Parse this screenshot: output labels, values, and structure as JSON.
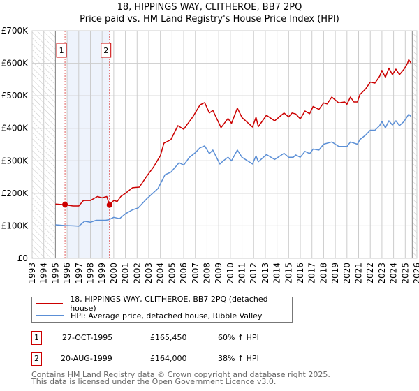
{
  "title": "18, HIPPINGS WAY, CLITHEROE, BB7 2PQ",
  "subtitle": "Price paid vs. HM Land Registry's House Price Index (HPI)",
  "colors": {
    "property": "#cc0000",
    "hpi": "#5b8fd6",
    "shade": "#eef3fc",
    "grid": "#cccccc"
  },
  "chart_data": {
    "type": "line",
    "title": "18, HIPPINGS WAY, CLITHEROE, BB7 2PQ",
    "subtitle": "Price paid vs. HM Land Registry's House Price Index (HPI)",
    "xlim": [
      1993,
      2026
    ],
    "ylim": [
      0,
      700000
    ],
    "x_ticks": [
      "1993",
      "1994",
      "1995",
      "1996",
      "1997",
      "1998",
      "1999",
      "2000",
      "2001",
      "2002",
      "2003",
      "2004",
      "2005",
      "2006",
      "2007",
      "2008",
      "2009",
      "2010",
      "2011",
      "2012",
      "2013",
      "2014",
      "2015",
      "2016",
      "2017",
      "2018",
      "2019",
      "2020",
      "2021",
      "2022",
      "2023",
      "2024",
      "2025",
      "2026"
    ],
    "y_ticks": [
      {
        "v": 0,
        "label": "£0"
      },
      {
        "v": 100000,
        "label": "£100K"
      },
      {
        "v": 200000,
        "label": "£200K"
      },
      {
        "v": 300000,
        "label": "£300K"
      },
      {
        "v": 400000,
        "label": "£400K"
      },
      {
        "v": 500000,
        "label": "£500K"
      },
      {
        "v": 600000,
        "label": "£600K"
      },
      {
        "v": 700000,
        "label": "£700K"
      }
    ],
    "grid": true,
    "hatched_ranges": [
      [
        1993,
        1995
      ],
      [
        2025.6,
        2026
      ]
    ],
    "shaded_range": [
      1996,
      1999.63
    ],
    "series": [
      {
        "name": "18, HIPPINGS WAY, CLITHEROE, BB7 2PQ (detached house)",
        "color": "#cc0000",
        "points": [
          [
            1995,
            167
          ],
          [
            1995.82,
            165
          ],
          [
            1996.5,
            161
          ],
          [
            1997,
            161
          ],
          [
            1997.4,
            178
          ],
          [
            1998,
            178
          ],
          [
            1998.6,
            190
          ],
          [
            1999,
            186
          ],
          [
            1999.4,
            190
          ],
          [
            1999.63,
            164
          ],
          [
            2000,
            178
          ],
          [
            2000.3,
            175
          ],
          [
            2000.6,
            190
          ],
          [
            2001,
            200
          ],
          [
            2001.6,
            217
          ],
          [
            2002.2,
            219
          ],
          [
            2002.8,
            251
          ],
          [
            2003.4,
            280
          ],
          [
            2004,
            316
          ],
          [
            2004.3,
            354
          ],
          [
            2004.9,
            365
          ],
          [
            2005.5,
            408
          ],
          [
            2006,
            397
          ],
          [
            2006.8,
            436
          ],
          [
            2007.4,
            472
          ],
          [
            2007.8,
            479
          ],
          [
            2008.2,
            447
          ],
          [
            2008.5,
            455
          ],
          [
            2009.2,
            402
          ],
          [
            2009.8,
            430
          ],
          [
            2010.1,
            415
          ],
          [
            2010.6,
            462
          ],
          [
            2011,
            433
          ],
          [
            2011.9,
            404
          ],
          [
            2012.2,
            434
          ],
          [
            2012.4,
            405
          ],
          [
            2013.1,
            440
          ],
          [
            2013.8,
            423
          ],
          [
            2014.6,
            447
          ],
          [
            2015,
            435
          ],
          [
            2015.3,
            447
          ],
          [
            2015.6,
            444
          ],
          [
            2016,
            429
          ],
          [
            2016.4,
            453
          ],
          [
            2016.8,
            445
          ],
          [
            2017.1,
            467
          ],
          [
            2017.6,
            458
          ],
          [
            2018,
            478
          ],
          [
            2018.3,
            475
          ],
          [
            2018.7,
            496
          ],
          [
            2019.3,
            478
          ],
          [
            2019.8,
            481
          ],
          [
            2020,
            474
          ],
          [
            2020.3,
            496
          ],
          [
            2020.6,
            481
          ],
          [
            2020.9,
            481
          ],
          [
            2021.1,
            503
          ],
          [
            2021.6,
            521
          ],
          [
            2022,
            542
          ],
          [
            2022.4,
            539
          ],
          [
            2022.8,
            560
          ],
          [
            2023,
            578
          ],
          [
            2023.3,
            557
          ],
          [
            2023.6,
            585
          ],
          [
            2023.9,
            565
          ],
          [
            2024.2,
            582
          ],
          [
            2024.5,
            565
          ],
          [
            2024.9,
            582
          ],
          [
            2025.2,
            600
          ],
          [
            2025.3,
            611
          ],
          [
            2025.5,
            600
          ]
        ]
      },
      {
        "name": "HPI: Average price, detached house, Ribble Valley",
        "color": "#5b8fd6",
        "points": [
          [
            1995,
            103
          ],
          [
            1995.8,
            101
          ],
          [
            1996.5,
            100
          ],
          [
            1997,
            99
          ],
          [
            1997.5,
            114
          ],
          [
            1998,
            111
          ],
          [
            1998.5,
            117
          ],
          [
            1999.3,
            117
          ],
          [
            1999.6,
            119
          ],
          [
            2000,
            126
          ],
          [
            2000.5,
            122
          ],
          [
            2001,
            137
          ],
          [
            2001.6,
            149
          ],
          [
            2002.1,
            155
          ],
          [
            2002.8,
            182
          ],
          [
            2003.8,
            215
          ],
          [
            2004.4,
            257
          ],
          [
            2004.9,
            265
          ],
          [
            2005.6,
            294
          ],
          [
            2006,
            287
          ],
          [
            2006.5,
            311
          ],
          [
            2007,
            325
          ],
          [
            2007.4,
            340
          ],
          [
            2007.8,
            346
          ],
          [
            2008.2,
            322
          ],
          [
            2008.5,
            333
          ],
          [
            2009.1,
            290
          ],
          [
            2009.4,
            300
          ],
          [
            2009.8,
            311
          ],
          [
            2010.1,
            300
          ],
          [
            2010.6,
            333
          ],
          [
            2011,
            311
          ],
          [
            2011.9,
            290
          ],
          [
            2012.2,
            315
          ],
          [
            2012.4,
            297
          ],
          [
            2013.1,
            319
          ],
          [
            2013.8,
            304
          ],
          [
            2014.6,
            323
          ],
          [
            2015,
            311
          ],
          [
            2015.4,
            311
          ],
          [
            2015.6,
            318
          ],
          [
            2016,
            311
          ],
          [
            2016.4,
            329
          ],
          [
            2016.8,
            322
          ],
          [
            2017.1,
            336
          ],
          [
            2017.6,
            333
          ],
          [
            2018,
            351
          ],
          [
            2018.7,
            358
          ],
          [
            2019.3,
            344
          ],
          [
            2020,
            344
          ],
          [
            2020.3,
            358
          ],
          [
            2020.9,
            351
          ],
          [
            2021.1,
            365
          ],
          [
            2021.6,
            379
          ],
          [
            2022,
            394
          ],
          [
            2022.4,
            394
          ],
          [
            2022.8,
            408
          ],
          [
            2023,
            421
          ],
          [
            2023.3,
            401
          ],
          [
            2023.6,
            423
          ],
          [
            2023.9,
            410
          ],
          [
            2024.2,
            423
          ],
          [
            2024.5,
            408
          ],
          [
            2024.9,
            421
          ],
          [
            2025.3,
            443
          ],
          [
            2025.5,
            436
          ]
        ]
      }
    ],
    "y_unit": "thousand GBP",
    "sales": [
      {
        "id": "1",
        "x": 1995.82,
        "y": 165.45
      },
      {
        "id": "2",
        "x": 1999.63,
        "y": 164.0
      }
    ],
    "legend_position": "below"
  },
  "legend": [
    {
      "label": "18, HIPPINGS WAY, CLITHEROE, BB7 2PQ (detached house)"
    },
    {
      "label": "HPI: Average price, detached house, Ribble Valley"
    }
  ],
  "transactions": [
    {
      "id": "1",
      "date": "27-OCT-1995",
      "price": "£165,450",
      "hpi": "60% ↑ HPI"
    },
    {
      "id": "2",
      "date": "20-AUG-1999",
      "price": "£164,000",
      "hpi": "38% ↑ HPI"
    }
  ],
  "footer": [
    "Contains HM Land Registry data © Crown copyright and database right 2025.",
    "This data is licensed under the Open Government Licence v3.0."
  ]
}
